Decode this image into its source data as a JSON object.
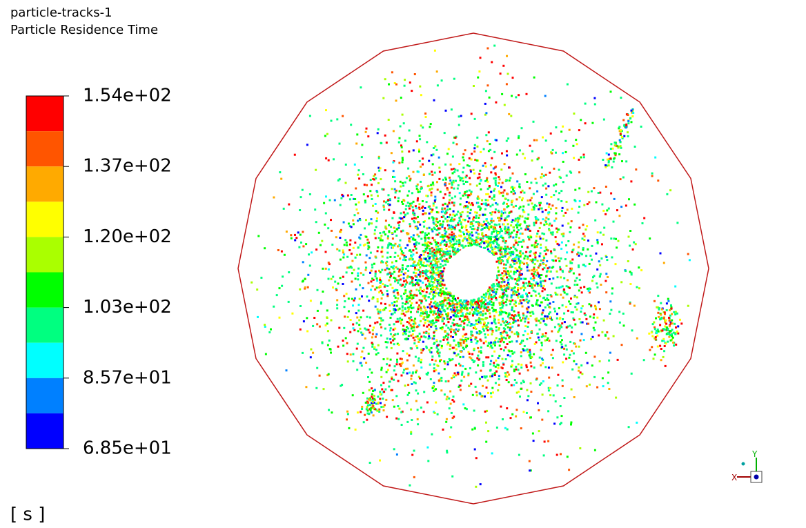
{
  "header": {
    "title": "particle-tracks-1",
    "subtitle": "Particle Residence Time"
  },
  "colorbar": {
    "labels": [
      "1.54e+02",
      "1.37e+02",
      "1.20e+02",
      "1.03e+02",
      "8.57e+01",
      "6.85e+01"
    ],
    "colors": [
      "#ff0000",
      "#ff5500",
      "#ffaa00",
      "#ffff00",
      "#aaff00",
      "#00ff00",
      "#00ff80",
      "#00ffff",
      "#0080ff",
      "#0000ff"
    ],
    "unit": "[ s ]"
  },
  "axes_triad": {
    "x": "X",
    "y": "Y"
  }
}
